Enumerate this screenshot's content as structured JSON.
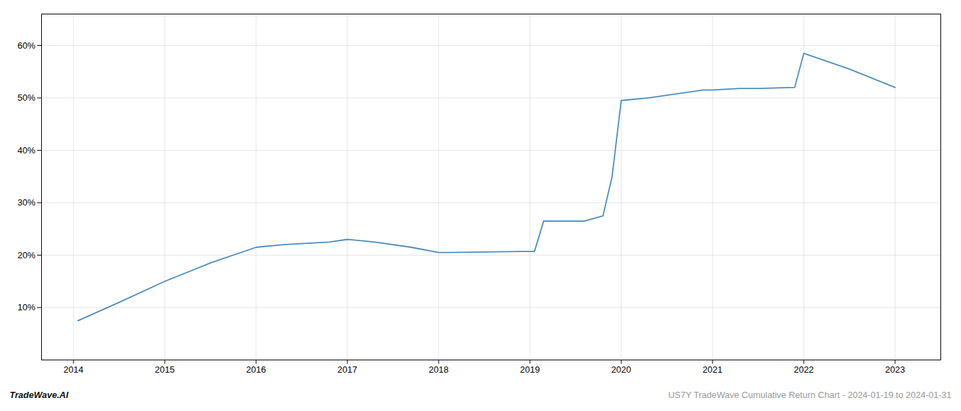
{
  "chart_data": {
    "type": "line",
    "x": [
      2014.05,
      2014.5,
      2015.0,
      2015.5,
      2016.0,
      2016.3,
      2016.8,
      2017.0,
      2017.3,
      2017.7,
      2018.0,
      2018.1,
      2018.9,
      2019.05,
      2019.15,
      2019.6,
      2019.8,
      2019.9,
      2020.0,
      2020.3,
      2020.9,
      2021.0,
      2021.3,
      2021.5,
      2021.9,
      2022.0,
      2022.5,
      2023.0
    ],
    "values": [
      7.5,
      11.0,
      15.0,
      18.5,
      21.5,
      22.0,
      22.5,
      23.0,
      22.5,
      21.5,
      20.5,
      20.5,
      20.7,
      20.7,
      26.5,
      26.5,
      27.5,
      35.0,
      49.5,
      50.0,
      51.5,
      51.5,
      51.8,
      51.8,
      52.0,
      58.5,
      55.5,
      52.0
    ],
    "color": "#4a8bbf",
    "xlim": [
      2013.65,
      2023.5
    ],
    "xticks": [
      2014,
      2015,
      2016,
      2017,
      2018,
      2019,
      2020,
      2021,
      2022,
      2023
    ],
    "ylim": [
      0,
      66
    ],
    "yticks": [
      {
        "value": 10,
        "label": "10%"
      },
      {
        "value": 20,
        "label": "20%"
      },
      {
        "value": 30,
        "label": "30%"
      },
      {
        "value": 40,
        "label": "40%"
      },
      {
        "value": 50,
        "label": "50%"
      },
      {
        "value": 60,
        "label": "60%"
      }
    ],
    "grid": true,
    "annotations": [
      "TradeWave.AI",
      "US7Y TradeWave Cumulative Return Chart - 2024-01-19 to 2024-01-31"
    ]
  }
}
